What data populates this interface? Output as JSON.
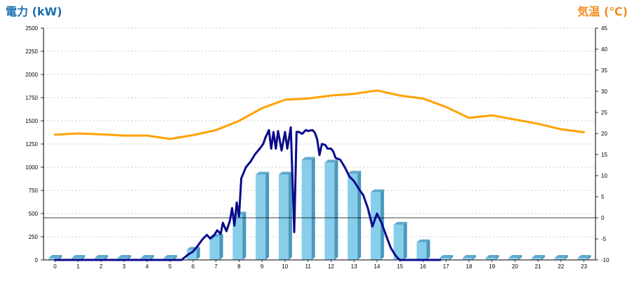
{
  "chart_data": {
    "type": "bar",
    "title": "",
    "ylabel_left": "電力 (kW)",
    "ylabel_right": "気温 (℃)",
    "colors": {
      "left_label": "#1a6fb0",
      "right_label": "#f28c1e",
      "bar": "#87ceeb",
      "bar_side": "#4a98bb",
      "bar_top": "#5fa9cc",
      "line_power": "#0a0a8c",
      "line_temp": "#ffa200",
      "grid": "#bbbbbb"
    },
    "categories": [
      "0",
      "1",
      "2",
      "3",
      "4",
      "5",
      "6",
      "7",
      "8",
      "9",
      "10",
      "11",
      "12",
      "13",
      "14",
      "15",
      "16",
      "17",
      "18",
      "19",
      "20",
      "21",
      "22",
      "23"
    ],
    "ylim_left": [
      0,
      2500
    ],
    "yticks_left": [
      "0",
      "250",
      "500",
      "750",
      "1000",
      "1250",
      "1500",
      "1750",
      "2000",
      "2250",
      "2500"
    ],
    "ylim_right": [
      -10,
      45
    ],
    "yticks_right": [
      "-10",
      "-5",
      "0",
      "5",
      "10",
      "15",
      "20",
      "25",
      "30",
      "35",
      "40",
      "45"
    ],
    "grid": true,
    "series": [
      {
        "kind": "bar",
        "axis": "left",
        "values": [
          0,
          0,
          0,
          0,
          0,
          0,
          110,
          250,
          490,
          920,
          920,
          1080,
          1050,
          930,
          730,
          380,
          190,
          0,
          0,
          0,
          0,
          0,
          0,
          0
        ]
      },
      {
        "kind": "line",
        "axis": "right",
        "x": [
          0,
          1,
          2,
          3,
          4,
          5,
          6,
          7,
          8,
          9,
          10,
          11,
          12,
          13,
          14,
          15,
          16,
          17,
          18,
          19,
          20,
          21,
          22,
          23
        ],
        "values": [
          19.7,
          20,
          19.8,
          19.5,
          19.5,
          18.7,
          19.6,
          20.8,
          23,
          26,
          28,
          28.3,
          29,
          29.4,
          30.2,
          29,
          28.3,
          26.3,
          23.7,
          24.3,
          23.3,
          22.3,
          21,
          20.3
        ]
      },
      {
        "kind": "line",
        "axis": "left",
        "x": [
          0,
          1,
          2,
          3,
          4,
          5,
          5.5,
          5.8,
          6,
          6.2,
          6.4,
          6.6,
          6.75,
          6.9,
          7.05,
          7.2,
          7.3,
          7.45,
          7.6,
          7.7,
          7.8,
          7.9,
          8,
          8.1,
          8.3,
          8.5,
          8.7,
          8.9,
          9.05,
          9.15,
          9.3,
          9.4,
          9.5,
          9.6,
          9.7,
          9.85,
          10,
          10.1,
          10.25,
          10.4,
          10.5,
          10.6,
          10.75,
          10.9,
          11,
          11.2,
          11.3,
          11.4,
          11.5,
          11.6,
          11.75,
          11.85,
          12,
          12.1,
          12.2,
          12.4,
          12.6,
          12.8,
          13,
          13.2,
          13.4,
          13.6,
          13.8,
          14,
          14.2,
          14.4,
          14.6,
          14.8,
          14.9,
          15,
          15.1,
          15.3,
          15.6,
          15.9,
          16.2,
          16.5,
          16.75
        ],
        "values": [
          0,
          0,
          0,
          0,
          0,
          0,
          0,
          60,
          90,
          150,
          220,
          270,
          230,
          260,
          320,
          280,
          400,
          310,
          420,
          560,
          370,
          620,
          470,
          880,
          1000,
          1060,
          1140,
          1200,
          1250,
          1320,
          1400,
          1200,
          1380,
          1200,
          1390,
          1180,
          1380,
          1200,
          1430,
          300,
          1380,
          1380,
          1360,
          1400,
          1390,
          1400,
          1370,
          1300,
          1130,
          1250,
          1240,
          1200,
          1200,
          1170,
          1100,
          1080,
          1000,
          900,
          850,
          770,
          700,
          560,
          360,
          500,
          400,
          260,
          130,
          50,
          20,
          0,
          0,
          0,
          0,
          0,
          0,
          0,
          0
        ]
      }
    ]
  }
}
